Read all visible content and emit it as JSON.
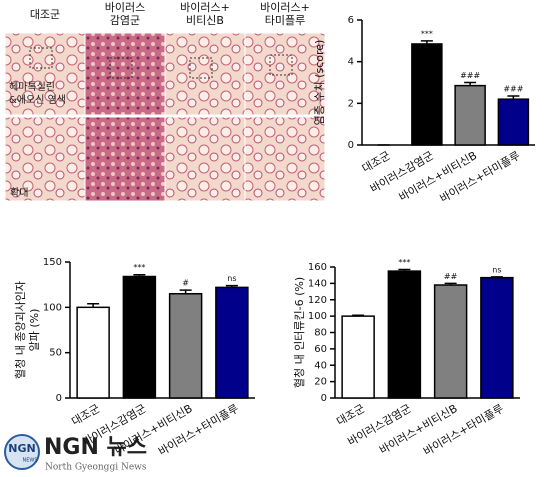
{
  "image_panel": {
    "columns": [
      "대조군",
      "바이러스\n감염군",
      "바이러스+\n비티신B",
      "바이러스+\n타미플루"
    ],
    "stain_label": "헤마톡실린\n&에오신 염색",
    "zoom_label": "확대"
  },
  "logo": {
    "mark": "NGN",
    "mark_sub": "NEWS",
    "name": "NGN 뉴스",
    "subtitle": "North Gyeonggi News"
  },
  "chart_data": [
    {
      "type": "bar",
      "ylabel": [
        "염증 수치 (score)"
      ],
      "categories": [
        "대조군",
        "바이러스감염군",
        "바이러스+비티신B",
        "바이러스+타미플루"
      ],
      "values": [
        0,
        4.85,
        2.85,
        2.2
      ],
      "errors": [
        0,
        0.15,
        0.15,
        0.15
      ],
      "annotations": [
        null,
        "***",
        "###",
        "###"
      ],
      "colors": [
        "#ffffff",
        "#000000",
        "#808080",
        "#00008b"
      ],
      "ylim": [
        0,
        6
      ],
      "yticks": [
        0,
        2,
        4,
        6
      ]
    },
    {
      "type": "bar",
      "ylabel": [
        "혈청 내 종양괴사인자",
        "알파 (%)"
      ],
      "categories": [
        "대조군",
        "바이러스감염군",
        "바이러스+비티신B",
        "바이러스+타미플루"
      ],
      "values": [
        100,
        134,
        115,
        122
      ],
      "errors": [
        4,
        2,
        4,
        2
      ],
      "annotations": [
        null,
        "***",
        "#",
        "ns"
      ],
      "colors": [
        "#ffffff",
        "#000000",
        "#808080",
        "#00008b"
      ],
      "ylim": [
        0,
        150
      ],
      "yticks": [
        0,
        50,
        100,
        150
      ]
    },
    {
      "type": "bar",
      "ylabel": [
        "혈청 내 인터류킨-6 (%)"
      ],
      "categories": [
        "대조군",
        "바이러스감염군",
        "바이러스+비티신B",
        "바이러스+타미플루"
      ],
      "values": [
        100,
        155,
        138,
        147
      ],
      "errors": [
        1,
        2,
        2,
        1
      ],
      "annotations": [
        null,
        "***",
        "##",
        "ns"
      ],
      "colors": [
        "#ffffff",
        "#000000",
        "#808080",
        "#00008b"
      ],
      "ylim": [
        0,
        160
      ],
      "yticks": [
        0,
        20,
        40,
        60,
        80,
        100,
        120,
        140,
        160
      ]
    }
  ]
}
